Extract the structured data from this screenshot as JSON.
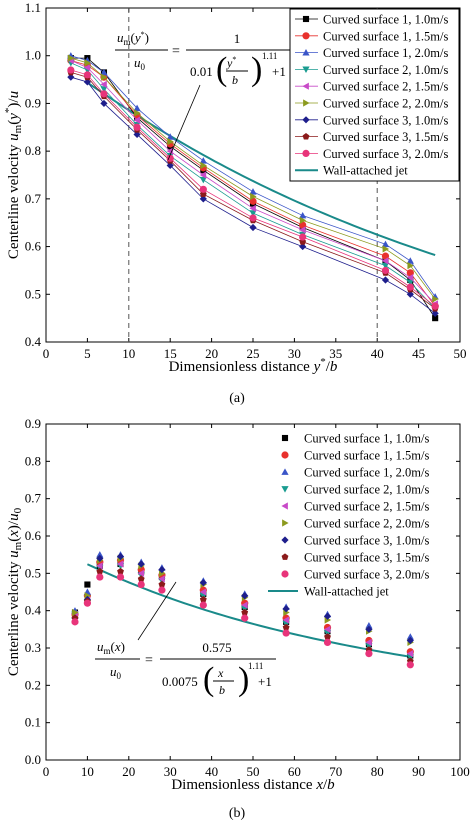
{
  "chart_data": [
    {
      "type": "scatter",
      "panel_label": "(a)",
      "xlabel": "Dimensionless distance y*/b",
      "ylabel": "Centerline velocity um(y*)/u0",
      "xlim": [
        0,
        50
      ],
      "ylim": [
        0.4,
        1.1
      ],
      "xticks": [
        0,
        5,
        10,
        15,
        20,
        25,
        30,
        35,
        40,
        45,
        50
      ],
      "yticks": [
        0.4,
        0.5,
        0.6,
        0.7,
        0.8,
        0.9,
        1.0,
        1.1
      ],
      "vlines": [
        10,
        40
      ],
      "legend_position": "top-right",
      "equation": {
        "lhs_num": "u_m(y*)",
        "lhs_den": "u_0",
        "rhs_num": "1",
        "rhs_den": "0.01 (y*/b)^1.11 + 1"
      },
      "x": [
        3,
        5,
        7,
        11,
        15,
        19,
        25,
        31,
        41,
        44,
        47
      ],
      "series": [
        {
          "name": "Curved surface 1, 1.0m/s",
          "marker": "square",
          "color": "#000000",
          "connected": true,
          "values": [
            0.995,
            0.995,
            0.965,
            0.87,
            0.81,
            0.76,
            0.69,
            0.64,
            0.57,
            0.53,
            0.45
          ]
        },
        {
          "name": "Curved surface 1, 1.5m/s",
          "marker": "circle",
          "color": "#e8312d",
          "connected": true,
          "values": [
            0.99,
            0.98,
            0.955,
            0.875,
            0.815,
            0.765,
            0.695,
            0.645,
            0.58,
            0.545,
            0.475
          ]
        },
        {
          "name": "Curved surface 1, 2.0m/s",
          "marker": "triangle-up",
          "color": "#3a55c8",
          "connected": true,
          "values": [
            1.0,
            0.99,
            0.965,
            0.89,
            0.83,
            0.78,
            0.715,
            0.665,
            0.605,
            0.57,
            0.495
          ]
        },
        {
          "name": "Curved surface 2, 1.0m/s",
          "marker": "triangle-down",
          "color": "#1a9c90",
          "connected": true,
          "values": [
            0.985,
            0.97,
            0.93,
            0.855,
            0.79,
            0.74,
            0.67,
            0.625,
            0.56,
            0.525,
            0.47
          ]
        },
        {
          "name": "Curved surface 2, 1.5m/s",
          "marker": "triangle-left",
          "color": "#c84ac8",
          "connected": true,
          "values": [
            0.99,
            0.975,
            0.94,
            0.865,
            0.8,
            0.75,
            0.68,
            0.635,
            0.57,
            0.535,
            0.48
          ]
        },
        {
          "name": "Curved surface 2, 2.0m/s",
          "marker": "triangle-right",
          "color": "#8c9a1e",
          "connected": true,
          "values": [
            0.995,
            0.985,
            0.955,
            0.88,
            0.82,
            0.77,
            0.705,
            0.655,
            0.595,
            0.56,
            0.49
          ]
        },
        {
          "name": "Curved surface 3, 1.0m/s",
          "marker": "diamond",
          "color": "#1e1e8c",
          "connected": true,
          "values": [
            0.955,
            0.945,
            0.9,
            0.835,
            0.77,
            0.7,
            0.64,
            0.6,
            0.53,
            0.5,
            0.46
          ]
        },
        {
          "name": "Curved surface 3, 1.5m/s",
          "marker": "pentagon",
          "color": "#8b1a1a",
          "connected": true,
          "values": [
            0.965,
            0.955,
            0.915,
            0.845,
            0.78,
            0.71,
            0.655,
            0.61,
            0.545,
            0.51,
            0.47
          ]
        },
        {
          "name": "Curved surface 3, 2.0m/s",
          "marker": "circle",
          "color": "#e8347a",
          "connected": true,
          "values": [
            0.97,
            0.96,
            0.92,
            0.85,
            0.785,
            0.72,
            0.66,
            0.62,
            0.55,
            0.515,
            0.475
          ]
        }
      ],
      "fit_curve": {
        "name": "Wall-attached jet",
        "color": "#1a8a8a",
        "x_range": [
          5,
          47
        ]
      }
    },
    {
      "type": "scatter",
      "panel_label": "(b)",
      "xlabel": "Dimensionless distance x/b",
      "ylabel": "Centerline velocity um(x)/u0",
      "xlim": [
        0,
        100
      ],
      "ylim": [
        0,
        0.9
      ],
      "xticks": [
        0,
        10,
        20,
        30,
        40,
        50,
        60,
        70,
        80,
        90,
        100
      ],
      "yticks": [
        0.0,
        0.1,
        0.2,
        0.3,
        0.4,
        0.5,
        0.6,
        0.7,
        0.8,
        0.9
      ],
      "legend_position": "top-right",
      "equation": {
        "lhs_num": "u_m(x)",
        "lhs_den": "u_0",
        "rhs_num": "0.575",
        "rhs_den": "0.0075 (x/b)^1.11 + 1"
      },
      "x": [
        7,
        10,
        13,
        18,
        23,
        28,
        38,
        48,
        58,
        68,
        78,
        88
      ],
      "series": [
        {
          "name": "Curved surface 1, 1.0m/s",
          "marker": "square",
          "color": "#000000",
          "connected": false,
          "values": [
            0.395,
            0.47,
            0.52,
            0.525,
            0.505,
            0.49,
            0.445,
            0.41,
            0.37,
            0.345,
            0.31,
            0.28
          ]
        },
        {
          "name": "Curved surface 1, 1.5m/s",
          "marker": "circle",
          "color": "#e8312d",
          "connected": false,
          "values": [
            0.39,
            0.44,
            0.53,
            0.535,
            0.51,
            0.495,
            0.455,
            0.42,
            0.38,
            0.355,
            0.32,
            0.29
          ]
        },
        {
          "name": "Curved surface 1, 2.0m/s",
          "marker": "triangle-up",
          "color": "#3a55c8",
          "connected": false,
          "values": [
            0.4,
            0.45,
            0.55,
            0.55,
            0.53,
            0.515,
            0.48,
            0.445,
            0.41,
            0.39,
            0.36,
            0.33
          ]
        },
        {
          "name": "Curved surface 2, 1.0m/s",
          "marker": "triangle-down",
          "color": "#1a9c90",
          "connected": false,
          "values": [
            0.39,
            0.42,
            0.515,
            0.52,
            0.495,
            0.48,
            0.44,
            0.405,
            0.365,
            0.34,
            0.305,
            0.275
          ]
        },
        {
          "name": "Curved surface 2, 1.5m/s",
          "marker": "triangle-left",
          "color": "#c84ac8",
          "connected": false,
          "values": [
            0.39,
            0.43,
            0.52,
            0.525,
            0.5,
            0.485,
            0.45,
            0.415,
            0.375,
            0.35,
            0.315,
            0.285
          ]
        },
        {
          "name": "Curved surface 2, 2.0m/s",
          "marker": "triangle-right",
          "color": "#8c9a1e",
          "connected": false,
          "values": [
            0.395,
            0.44,
            0.535,
            0.54,
            0.52,
            0.5,
            0.47,
            0.435,
            0.395,
            0.375,
            0.345,
            0.315
          ]
        },
        {
          "name": "Curved surface 3, 1.0m/s",
          "marker": "diamond",
          "color": "#1e1e8c",
          "connected": false,
          "values": [
            0.38,
            0.43,
            0.54,
            0.545,
            0.525,
            0.51,
            0.475,
            0.44,
            0.405,
            0.385,
            0.35,
            0.32
          ]
        },
        {
          "name": "Curved surface 3, 1.5m/s",
          "marker": "pentagon",
          "color": "#8b1a1a",
          "connected": false,
          "values": [
            0.38,
            0.425,
            0.505,
            0.505,
            0.485,
            0.47,
            0.43,
            0.395,
            0.355,
            0.33,
            0.295,
            0.265
          ]
        },
        {
          "name": "Curved surface 3, 2.0m/s",
          "marker": "circle",
          "color": "#e8347a",
          "connected": false,
          "values": [
            0.37,
            0.42,
            0.49,
            0.49,
            0.47,
            0.455,
            0.415,
            0.38,
            0.34,
            0.315,
            0.285,
            0.255
          ]
        }
      ],
      "fit_curve": {
        "name": "Wall-attached jet",
        "color": "#1a8a8a",
        "x_range": [
          10,
          88
        ]
      }
    }
  ]
}
